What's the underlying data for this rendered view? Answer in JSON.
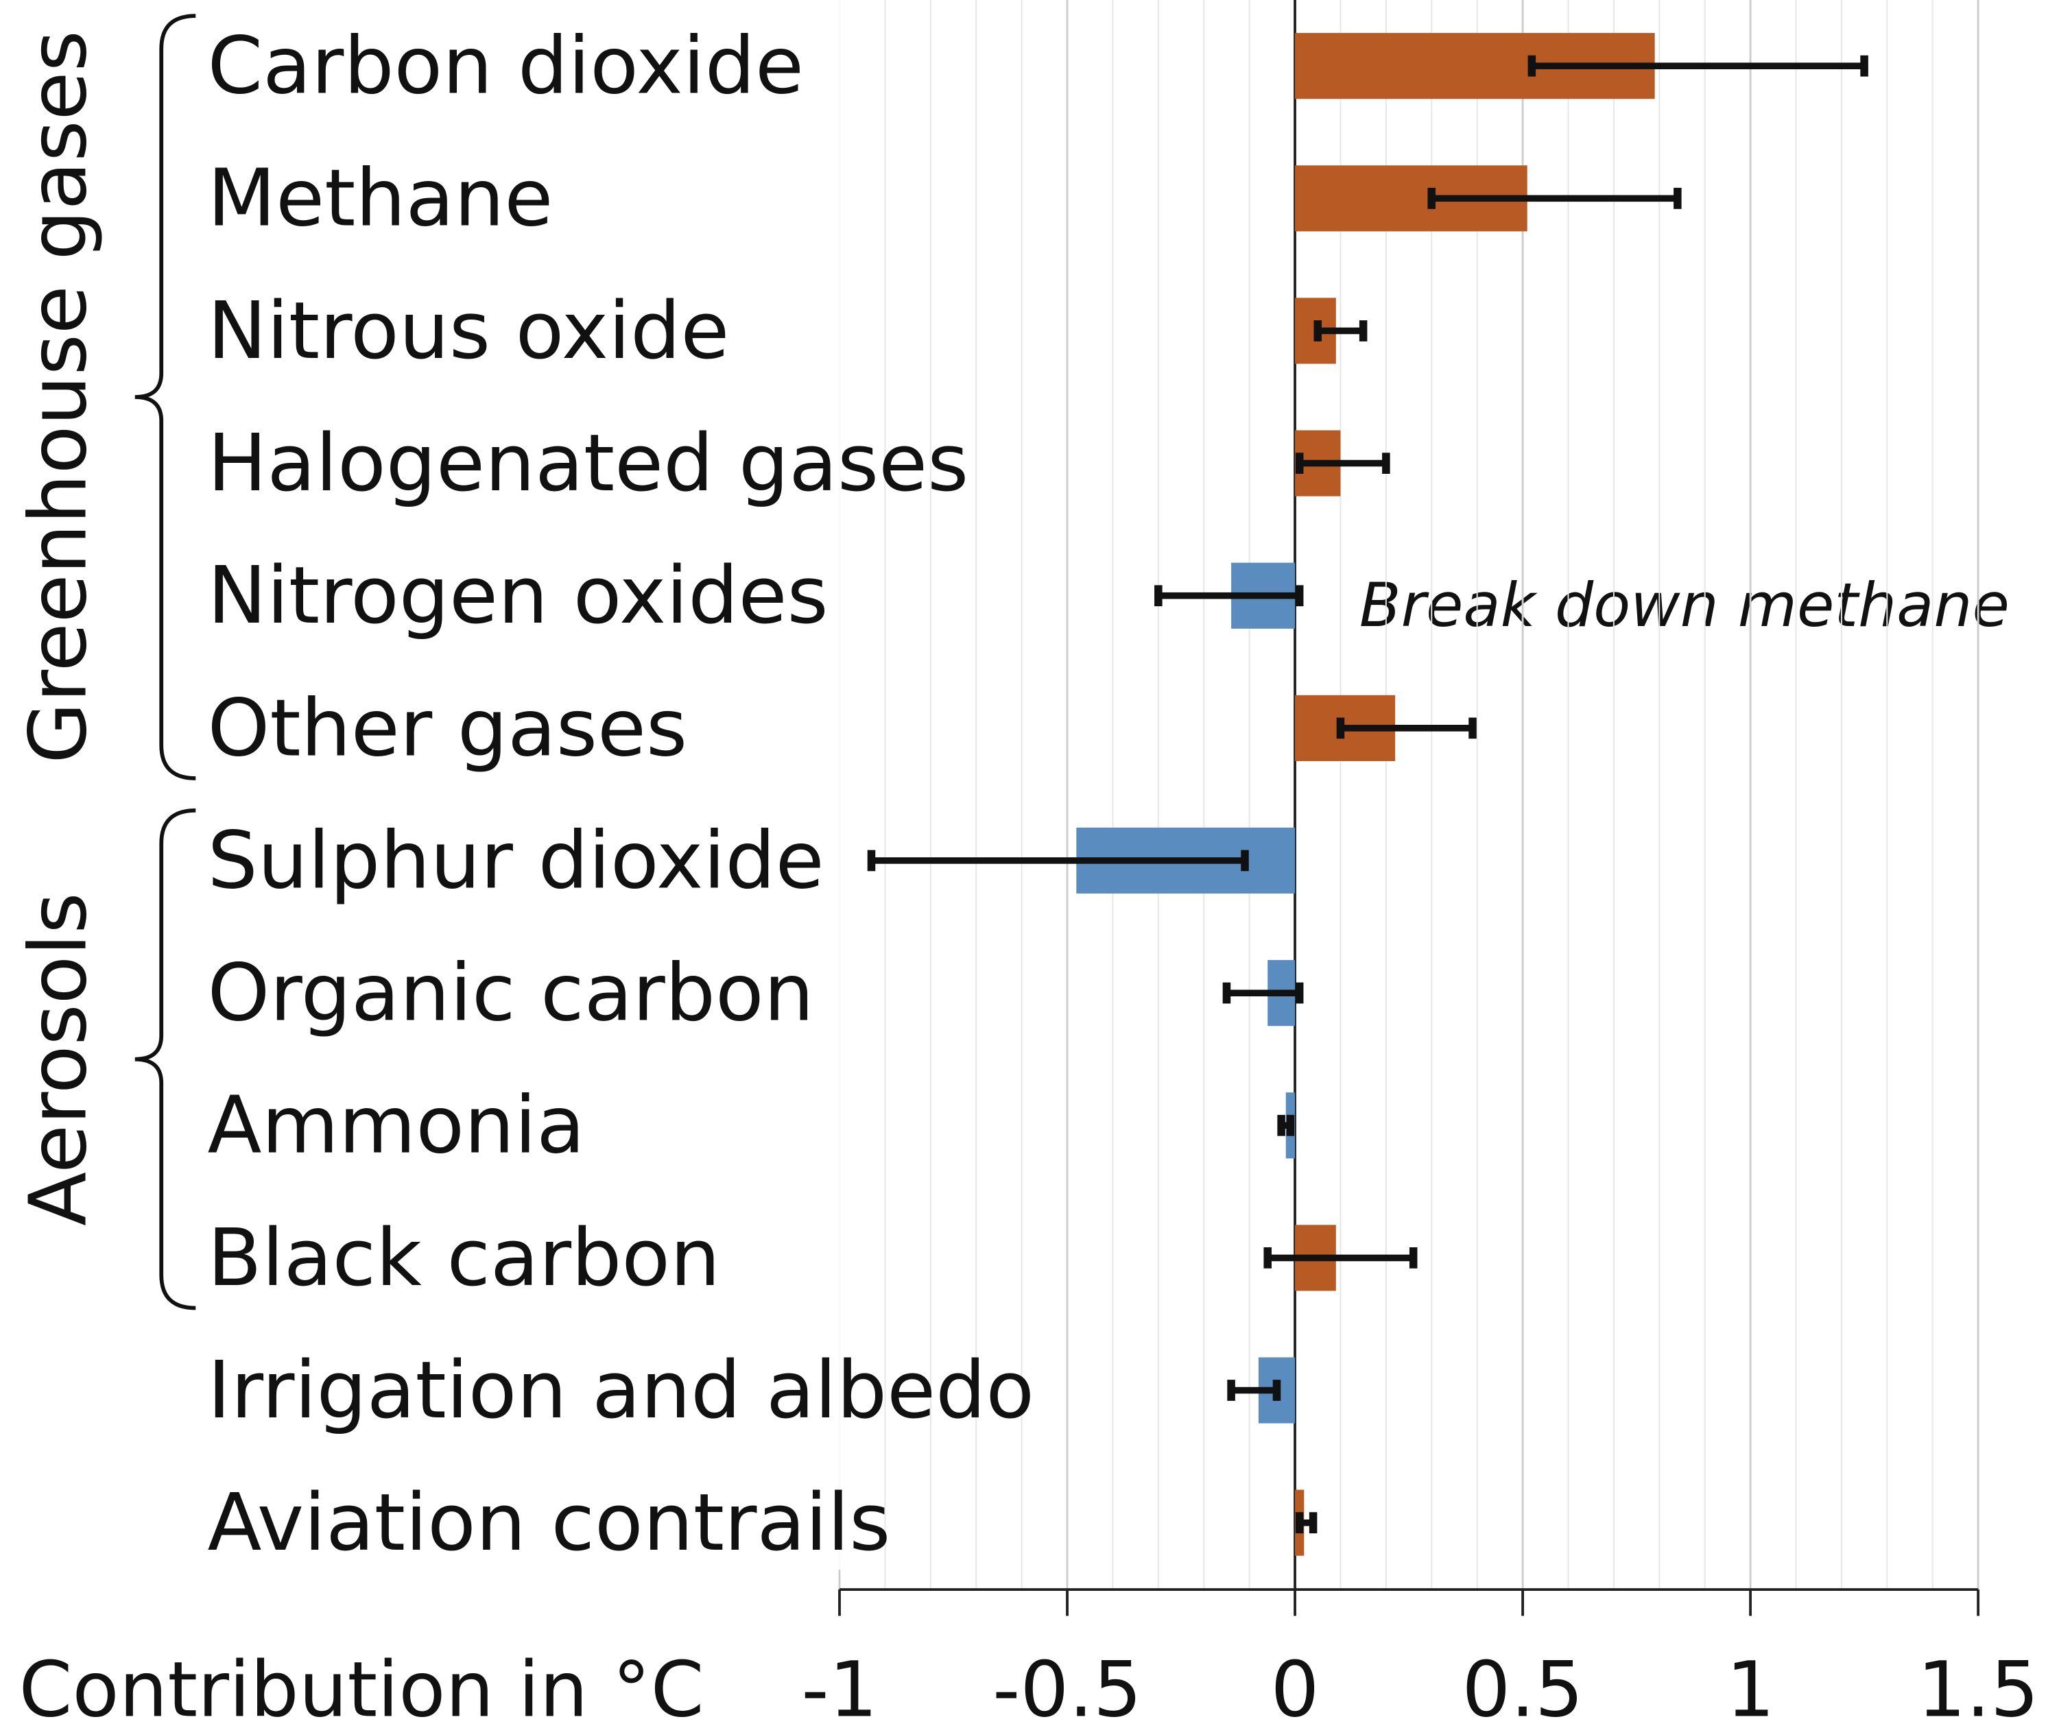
{
  "chart_data": {
    "type": "hbar_error",
    "x_label": "Contribution in °C",
    "annotation": "Break down methane",
    "categories": [
      "Carbon dioxide",
      "Methane",
      "Nitrous oxide",
      "Halogenated gases",
      "Nitrogen oxides",
      "Other gases",
      "Sulphur dioxide",
      "Organic carbon",
      "Ammonia",
      "Black carbon",
      "Irrigation and albedo",
      "Aviation contrails"
    ],
    "values": [
      0.79,
      0.51,
      0.09,
      0.1,
      -0.14,
      0.22,
      -0.48,
      -0.06,
      -0.02,
      0.09,
      -0.08,
      0.02
    ],
    "error_low": [
      0.52,
      0.3,
      0.05,
      0.01,
      -0.3,
      0.1,
      -0.93,
      -0.15,
      -0.03,
      -0.06,
      -0.14,
      0.01
    ],
    "error_high": [
      1.25,
      0.84,
      0.15,
      0.2,
      0.01,
      0.39,
      -0.11,
      0.01,
      -0.01,
      0.26,
      -0.04,
      0.04
    ],
    "groups": [
      {
        "name": "Greenhouse gases",
        "from": 0,
        "to": 5
      },
      {
        "name": "Aerosols",
        "from": 6,
        "to": 9
      }
    ],
    "positive_color": "#b85a24",
    "negative_color": "#5a8cbf",
    "xlim": [
      -1,
      1.5
    ],
    "xticks": [
      -1,
      -0.5,
      0,
      0.5,
      1,
      1.5
    ],
    "grid": true
  }
}
